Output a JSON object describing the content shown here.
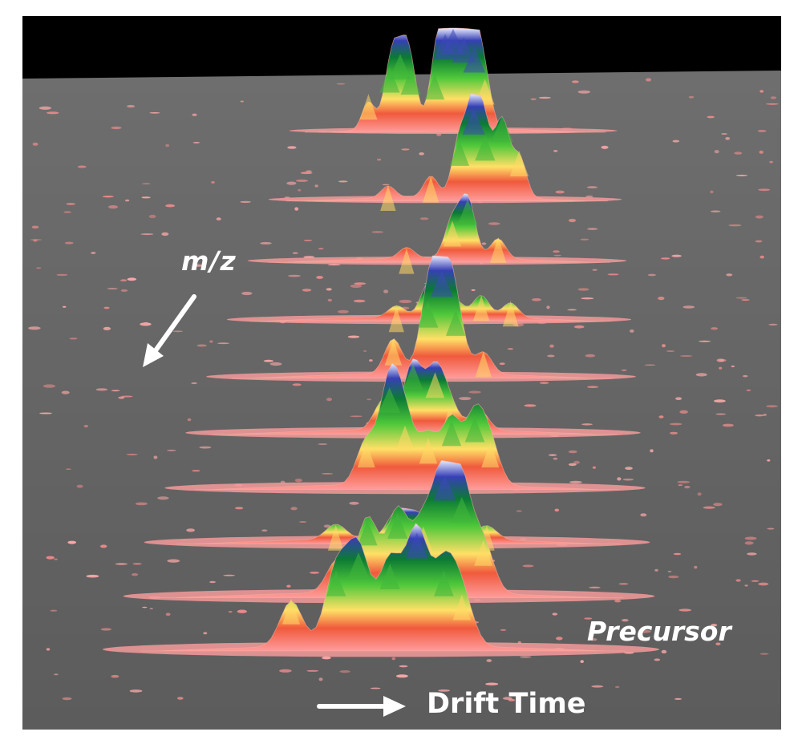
{
  "chart_data": {
    "type": "3d-surface",
    "title": "",
    "axes": {
      "mz_label": "m/z",
      "drift_label": "Drift Time",
      "intensity_scale": "relative",
      "mz_axis_direction": "toward-viewer-lower-left",
      "drift_axis_direction": "left-to-right"
    },
    "annotations": {
      "precursor": "Precursor"
    },
    "colormap": [
      "#ff8c8c",
      "#ffe060",
      "#2fbf2f",
      "#0a7a2a",
      "#3a3ab0",
      "#ffffff"
    ],
    "background_color": "#5e5e5e",
    "series": [
      {
        "peaks": [
          [
            0.18,
            0.35
          ],
          [
            0.26,
            0.62
          ],
          [
            0.3,
            0.75
          ],
          [
            0.34,
            0.6
          ],
          [
            0.43,
            0.55
          ],
          [
            0.47,
            0.95
          ],
          [
            0.5,
            1.0
          ],
          [
            0.54,
            0.92
          ],
          [
            0.58,
            0.82
          ],
          [
            0.62,
            0.5
          ]
        ]
      },
      {
        "peaks": [
          [
            0.3,
            0.12
          ],
          [
            0.45,
            0.2
          ],
          [
            0.55,
            0.55
          ],
          [
            0.6,
            0.85
          ],
          [
            0.64,
            0.6
          ],
          [
            0.7,
            0.78
          ],
          [
            0.76,
            0.45
          ]
        ]
      },
      {
        "peaks": [
          [
            0.4,
            0.1
          ],
          [
            0.55,
            0.35
          ],
          [
            0.6,
            0.55
          ],
          [
            0.7,
            0.2
          ]
        ]
      },
      {
        "peaks": [
          [
            0.4,
            0.1
          ],
          [
            0.5,
            0.3
          ],
          [
            0.58,
            0.15
          ],
          [
            0.66,
            0.2
          ],
          [
            0.75,
            0.15
          ]
        ]
      },
      {
        "peaks": [
          [
            0.42,
            0.3
          ],
          [
            0.52,
            0.62
          ],
          [
            0.56,
            0.88
          ],
          [
            0.6,
            0.55
          ],
          [
            0.68,
            0.2
          ]
        ]
      },
      {
        "peaks": [
          [
            0.42,
            0.25
          ],
          [
            0.5,
            0.55
          ],
          [
            0.56,
            0.48
          ],
          [
            0.6,
            0.2
          ],
          [
            0.68,
            0.18
          ]
        ]
      },
      {
        "peaks": [
          [
            0.4,
            0.35
          ],
          [
            0.46,
            0.78
          ],
          [
            0.5,
            0.48
          ],
          [
            0.56,
            0.38
          ],
          [
            0.62,
            0.52
          ],
          [
            0.68,
            0.55
          ],
          [
            0.72,
            0.35
          ]
        ]
      },
      {
        "peaks": [
          [
            0.35,
            0.12
          ],
          [
            0.5,
            0.2
          ],
          [
            0.55,
            0.18
          ],
          [
            0.62,
            0.22
          ],
          [
            0.72,
            0.12
          ]
        ]
      },
      {
        "peaks": [
          [
            0.38,
            0.25
          ],
          [
            0.45,
            0.55
          ],
          [
            0.52,
            0.6
          ],
          [
            0.58,
            0.5
          ],
          [
            0.63,
            0.88
          ],
          [
            0.67,
            0.72
          ],
          [
            0.72,
            0.4
          ]
        ]
      },
      {
        "peaks": [
          [
            0.3,
            0.35
          ],
          [
            0.4,
            0.55
          ],
          [
            0.45,
            0.68
          ],
          [
            0.52,
            0.6
          ],
          [
            0.58,
            0.82
          ],
          [
            0.64,
            0.55
          ],
          [
            0.68,
            0.38
          ]
        ]
      }
    ]
  }
}
